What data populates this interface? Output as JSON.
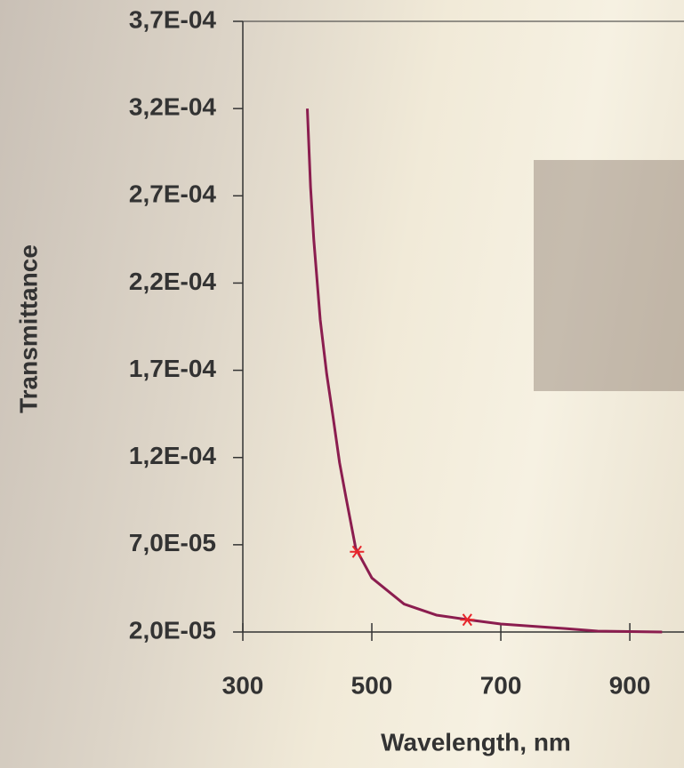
{
  "chart_data": {
    "type": "line",
    "x_label": "Wavelength, nm",
    "y_label": "Transmittance",
    "xlim": [
      300,
      984
    ],
    "ylim": [
      2e-05,
      0.00037
    ],
    "xticks": [
      300,
      500,
      700,
      900
    ],
    "yticks": [
      {
        "value": 2e-05,
        "label": "2,0E-05"
      },
      {
        "value": 7e-05,
        "label": "7,0E-05"
      },
      {
        "value": 0.00012,
        "label": "1,2E-04"
      },
      {
        "value": 0.00017,
        "label": "1,7E-04"
      },
      {
        "value": 0.00022,
        "label": "2,2E-04"
      },
      {
        "value": 0.00027,
        "label": "2,7E-04"
      },
      {
        "value": 0.00032,
        "label": "3,2E-04"
      },
      {
        "value": 0.00037,
        "label": "3,7E-04"
      }
    ],
    "series": [
      {
        "color": "#8b1d4f",
        "marker": "none",
        "x": [
          400,
          405,
          410,
          420,
          430,
          440,
          450,
          460,
          475,
          500,
          550,
          600,
          650,
          700,
          800,
          850,
          950
        ],
        "values": [
          0.00032,
          0.000275,
          0.000245,
          0.000199,
          0.000168,
          0.000143,
          0.000117,
          9.7e-05,
          6.8e-05,
          5.1e-05,
          3.6e-05,
          2.97e-05,
          2.7e-05,
          2.46e-05,
          2.2e-05,
          2.05e-05,
          2e-05
        ]
      },
      {
        "color": "#e8262b",
        "marker": "star",
        "x": [
          477,
          648
        ],
        "values": [
          6.6e-05,
          2.7e-05
        ]
      }
    ]
  }
}
